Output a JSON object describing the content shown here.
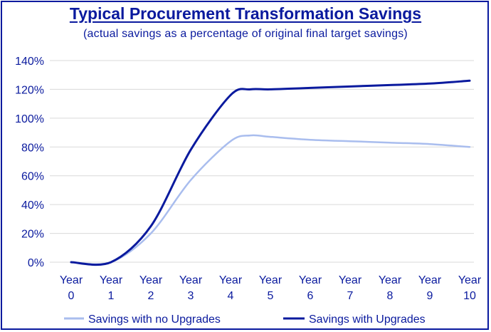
{
  "chart_data": {
    "type": "line",
    "title": "Typical Procurement Transformation Savings",
    "subtitle": "(actual savings as a percentage of original final target savings)",
    "xlabel": "",
    "ylabel": "",
    "x": [
      0,
      1,
      2,
      3,
      4,
      4.5,
      5,
      6,
      7,
      8,
      9,
      10
    ],
    "x_tick_labels": [
      [
        "Year",
        "0"
      ],
      [
        "Year",
        "1"
      ],
      [
        "Year",
        "2"
      ],
      [
        "Year",
        "3"
      ],
      [
        "Year",
        "4"
      ],
      [
        "Year",
        "5"
      ],
      [
        "Year",
        "6"
      ],
      [
        "Year",
        "7"
      ],
      [
        "Year",
        "8"
      ],
      [
        "Year",
        "9"
      ],
      [
        "Year",
        "10"
      ]
    ],
    "y_tick_labels": [
      "0%",
      "20%",
      "40%",
      "60%",
      "80%",
      "100%",
      "120%",
      "140%"
    ],
    "ylim": [
      0,
      140
    ],
    "xlim": [
      0,
      10
    ],
    "grid": "horizontal",
    "legend_position": "bottom",
    "series": [
      {
        "name": "Savings with no Upgrades",
        "color": "#a9bdee",
        "values": [
          0,
          0,
          20,
          57,
          84,
          88,
          87,
          85,
          84,
          83,
          82,
          80
        ]
      },
      {
        "name": "Savings with Upgrades",
        "color": "#0a1a9e",
        "values": [
          0,
          0,
          25,
          78,
          116,
          120,
          120,
          121,
          122,
          123,
          124,
          126
        ]
      }
    ]
  }
}
